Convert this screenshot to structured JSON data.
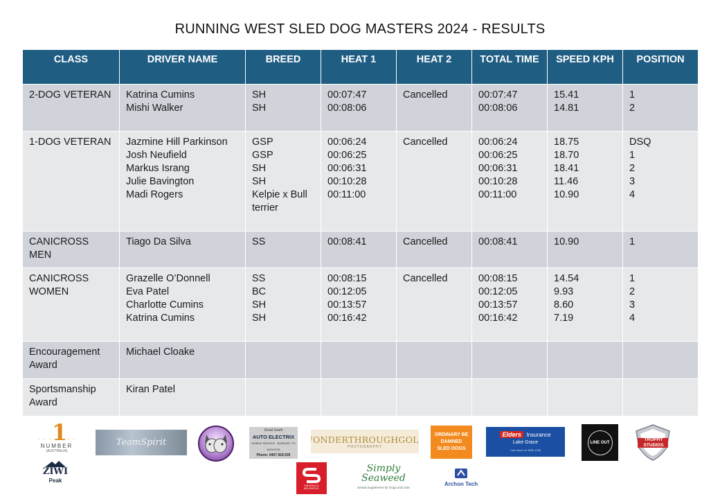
{
  "title": "RUNNING WEST SLED DOG MASTERS 2024 - RESULTS",
  "headers": [
    "CLASS",
    "DRIVER NAME",
    "BREED",
    "HEAT 1",
    "HEAT 2",
    "TOTAL TIME",
    "SPEED KPH",
    "POSITION"
  ],
  "rows": [
    {
      "class": "2-DOG VETERAN",
      "drivers": [
        "Katrina Cumins",
        "Mishi Walker"
      ],
      "breeds": [
        "SH",
        "SH"
      ],
      "heat1": [
        "00:07:47",
        "00:08:06"
      ],
      "heat2": "Cancelled",
      "total": [
        "00:07:47",
        "00:08:06"
      ],
      "speed": [
        "15.41",
        "14.81"
      ],
      "position": [
        "1",
        "2"
      ]
    },
    {
      "class": "1-DOG VETERAN",
      "drivers": [
        "Jazmine Hill Parkinson",
        "Josh Neufield",
        "Markus Israng",
        "Julie Bavington",
        "Madi Rogers"
      ],
      "breeds": [
        "GSP",
        "GSP",
        "SH",
        "SH",
        "Kelpie x Bull terrier"
      ],
      "heat1": [
        "00:06:24",
        "00:06:25",
        "00:06:31",
        "00:10:28",
        "00:11:00"
      ],
      "heat2": "Cancelled",
      "total": [
        "00:06:24",
        "00:06:25",
        "00:06:31",
        "00:10:28",
        "00:11:00"
      ],
      "speed": [
        "18.75",
        "18.70",
        "18.41",
        "11.46",
        "10.90"
      ],
      "position": [
        "DSQ",
        "1",
        "2",
        "3",
        "4"
      ]
    },
    {
      "class": "CANICROSS MEN",
      "drivers": [
        "Tiago Da Silva"
      ],
      "breeds": [
        "SS"
      ],
      "heat1": [
        "00:08:41"
      ],
      "heat2": "Cancelled",
      "total": [
        "00:08:41"
      ],
      "speed": [
        "10.90"
      ],
      "position": [
        "1"
      ]
    },
    {
      "class": "CANICROSS WOMEN",
      "drivers": [
        "Grazelle O’Donnell",
        "Eva Patel",
        "Charlotte Cumins",
        "Katrina Cumins"
      ],
      "breeds": [
        "SS",
        "BC",
        "SH",
        "SH"
      ],
      "heat1": [
        "00:08:15",
        "00:12:05",
        "00:13:57",
        "00:16:42"
      ],
      "heat2": "Cancelled",
      "total": [
        "00:08:15",
        "00:12:05",
        "00:13:57",
        "00:16:42"
      ],
      "speed": [
        "14.54",
        "9.93",
        "8.60",
        "7.19"
      ],
      "position": [
        "1",
        "2",
        "3",
        "4"
      ]
    },
    {
      "class": "Encouragement Award",
      "drivers": [
        "Michael Cloake"
      ],
      "breeds": [],
      "heat1": [],
      "heat2": "",
      "total": [],
      "speed": [],
      "position": []
    },
    {
      "class": "Sportsmanship Award",
      "drivers": [
        "Kiran Patel"
      ],
      "breeds": [],
      "heat1": [],
      "heat2": "",
      "total": [],
      "speed": [],
      "position": []
    }
  ],
  "sponsors": {
    "number1": {
      "big": "1",
      "small": "NUMBER",
      "sub": "(AUSTRALIA)"
    },
    "team_spirit": "TeamSpirit",
    "auto_electrix": {
      "line1": "Great South",
      "line2": "AUTO ELECTRIX",
      "line3": "MOBILE SERVICE · BUNBURY TO AUGUSTA",
      "line4": "Phone: 0407 818 635"
    },
    "wonder": {
      "main": "WONDERTHROUGHGOLD",
      "sub": "PHOTOGRAPHY"
    },
    "ordinary": [
      "ORDINARY BE",
      "DAMNED",
      "SLED DOGS"
    ],
    "elders": {
      "brand": "Elders",
      "word": "Insurance",
      "sub": "Lake Grace",
      "tiny": "Call Jason on 9865 1036"
    },
    "line_out": "LINE OUT",
    "trophy": [
      "TROPHY",
      "STUDIOS"
    ],
    "ziwi": {
      "main": "ZIWI",
      "sub": "Peak"
    },
    "kingdale": "KINGDALE & WELSHPOOL",
    "simply_seaweed": {
      "main": "Simply Seaweed",
      "sub": "Dental Supplement for Dogs and Cats"
    },
    "archon": "Archon Tech",
    "colors": {
      "header": "#1f5d83",
      "row_dark": "#d0d4da",
      "row_light": "#e6e8ea"
    }
  }
}
